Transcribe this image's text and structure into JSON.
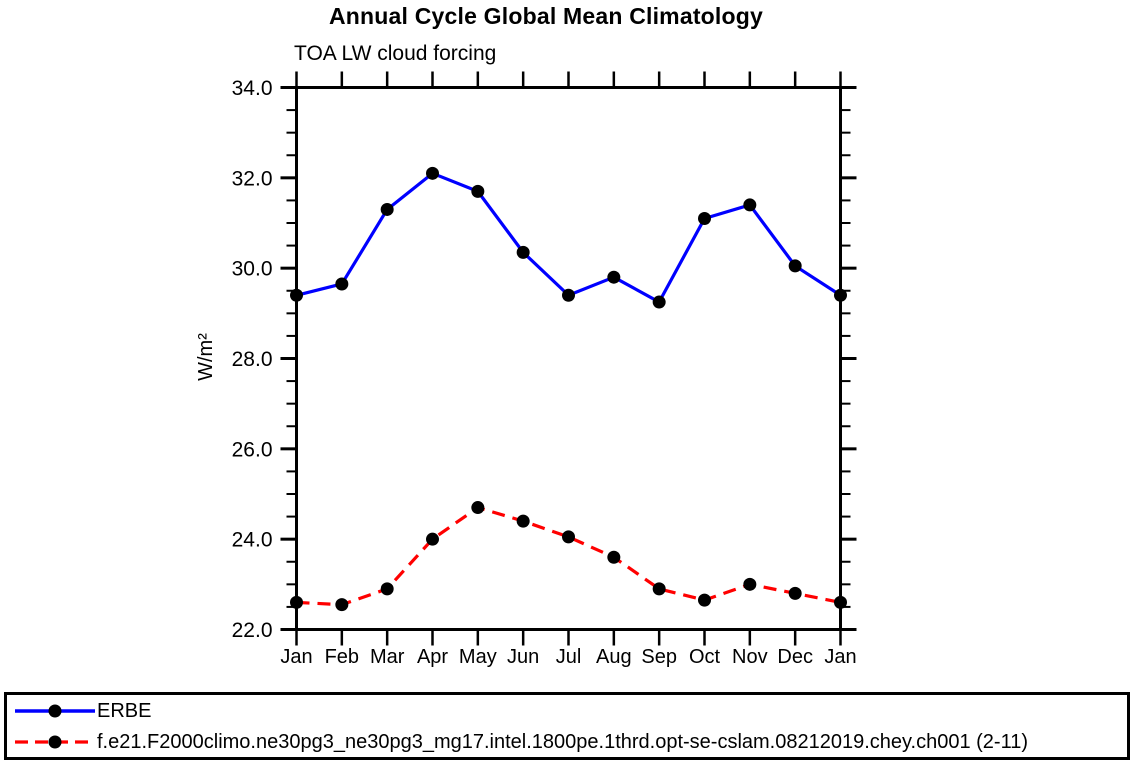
{
  "chart_data": {
    "type": "line",
    "title": "Annual Cycle Global Mean Climatology",
    "subtitle": "TOA LW cloud forcing",
    "ylabel": "W/m²",
    "xlabel": "",
    "categories": [
      "Jan",
      "Feb",
      "Mar",
      "Apr",
      "May",
      "Jun",
      "Jul",
      "Aug",
      "Sep",
      "Oct",
      "Nov",
      "Dec",
      "Jan"
    ],
    "ylim": [
      22.0,
      34.0
    ],
    "ytick_major_interval": 2.0,
    "ytick_minor_interval": 0.5,
    "ytick_labels": [
      "22.0",
      "24.0",
      "26.0",
      "28.0",
      "30.0",
      "32.0",
      "34.0"
    ],
    "grid": false,
    "legend_position": "bottom-box",
    "axis_color": "#000000",
    "marker": "filled-circle",
    "marker_color": "#000000",
    "series": [
      {
        "name": "ERBE",
        "color": "#0000ff",
        "line_style": "solid",
        "values": [
          29.4,
          29.65,
          31.3,
          32.1,
          31.7,
          30.35,
          29.4,
          29.8,
          29.25,
          31.1,
          31.4,
          30.05,
          29.4
        ]
      },
      {
        "name": "f.e21.F2000climo.ne30pg3_ne30pg3_mg17.intel.1800pe.1thrd.opt-se-cslam.08212019.chey.ch001 (2-11)",
        "color": "#ff0000",
        "line_style": "dashed",
        "values": [
          22.6,
          22.55,
          22.9,
          24.0,
          24.7,
          24.4,
          24.05,
          23.6,
          22.9,
          22.65,
          23.0,
          22.8,
          22.6
        ]
      }
    ]
  }
}
